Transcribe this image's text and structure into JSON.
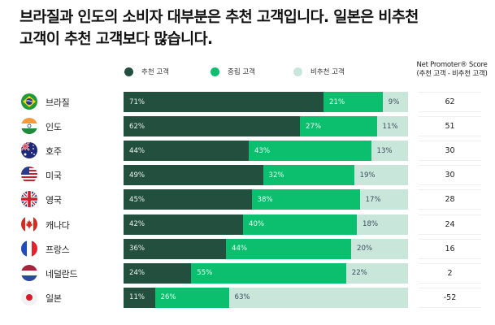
{
  "title": {
    "line1": "브라질과 인도의 소비자 대부분은 추천 고객입니다. 일본은 비추천",
    "line2": "고객이 추천 고객보다 많습니다."
  },
  "legend": {
    "promoter": "추천 고객",
    "passive": "중립 고객",
    "detractor": "비추천 고객"
  },
  "nps_header": {
    "line1": "Net Promoter® Score",
    "line2": "(추천 고객 - 비추천 고객)"
  },
  "colors": {
    "promoter": "#234f3e",
    "passive": "#0bbf6f",
    "detractor": "#c9e6da"
  },
  "chart_data": {
    "type": "bar",
    "orientation": "horizontal",
    "stacked": true,
    "title": "브라질과 인도의 소비자 대부분은 추천 고객입니다. 일본은 비추천 고객이 추천 고객보다 많습니다.",
    "categories": [
      "브라질",
      "인도",
      "호주",
      "미국",
      "영국",
      "캐나다",
      "프랑스",
      "네덜란드",
      "일본"
    ],
    "series": [
      {
        "name": "추천 고객",
        "values": [
          71,
          62,
          44,
          49,
          45,
          42,
          36,
          24,
          11
        ]
      },
      {
        "name": "중립 고객",
        "values": [
          21,
          27,
          43,
          32,
          38,
          40,
          44,
          55,
          26
        ]
      },
      {
        "name": "비추천 고객",
        "values": [
          9,
          11,
          13,
          19,
          17,
          18,
          20,
          22,
          63
        ]
      }
    ],
    "nps": {
      "label": "Net Promoter® Score (추천 고객 - 비추천 고객)",
      "values": [
        62,
        51,
        30,
        30,
        28,
        24,
        16,
        2,
        -52
      ]
    },
    "unit": "%",
    "legend_position": "top",
    "grid": false
  },
  "rows": [
    {
      "country": "브라질",
      "flag": "brazil-flag",
      "promoter": "71%",
      "passive": "21%",
      "detractor": "9%",
      "score": "62"
    },
    {
      "country": "인도",
      "flag": "india-flag",
      "promoter": "62%",
      "passive": "27%",
      "detractor": "11%",
      "score": "51"
    },
    {
      "country": "호주",
      "flag": "australia-flag",
      "promoter": "44%",
      "passive": "43%",
      "detractor": "13%",
      "score": "30"
    },
    {
      "country": "미국",
      "flag": "usa-flag",
      "promoter": "49%",
      "passive": "32%",
      "detractor": "19%",
      "score": "30"
    },
    {
      "country": "영국",
      "flag": "uk-flag",
      "promoter": "45%",
      "passive": "38%",
      "detractor": "17%",
      "score": "28"
    },
    {
      "country": "캐나다",
      "flag": "canada-flag",
      "promoter": "42%",
      "passive": "40%",
      "detractor": "18%",
      "score": "24"
    },
    {
      "country": "프랑스",
      "flag": "france-flag",
      "promoter": "36%",
      "passive": "44%",
      "detractor": "20%",
      "score": "16"
    },
    {
      "country": "네덜란드",
      "flag": "netherlands-flag",
      "promoter": "24%",
      "passive": "55%",
      "detractor": "22%",
      "score": "2"
    },
    {
      "country": "일본",
      "flag": "japan-flag",
      "promoter": "11%",
      "passive": "26%",
      "detractor": "63%",
      "score": "-52"
    }
  ]
}
